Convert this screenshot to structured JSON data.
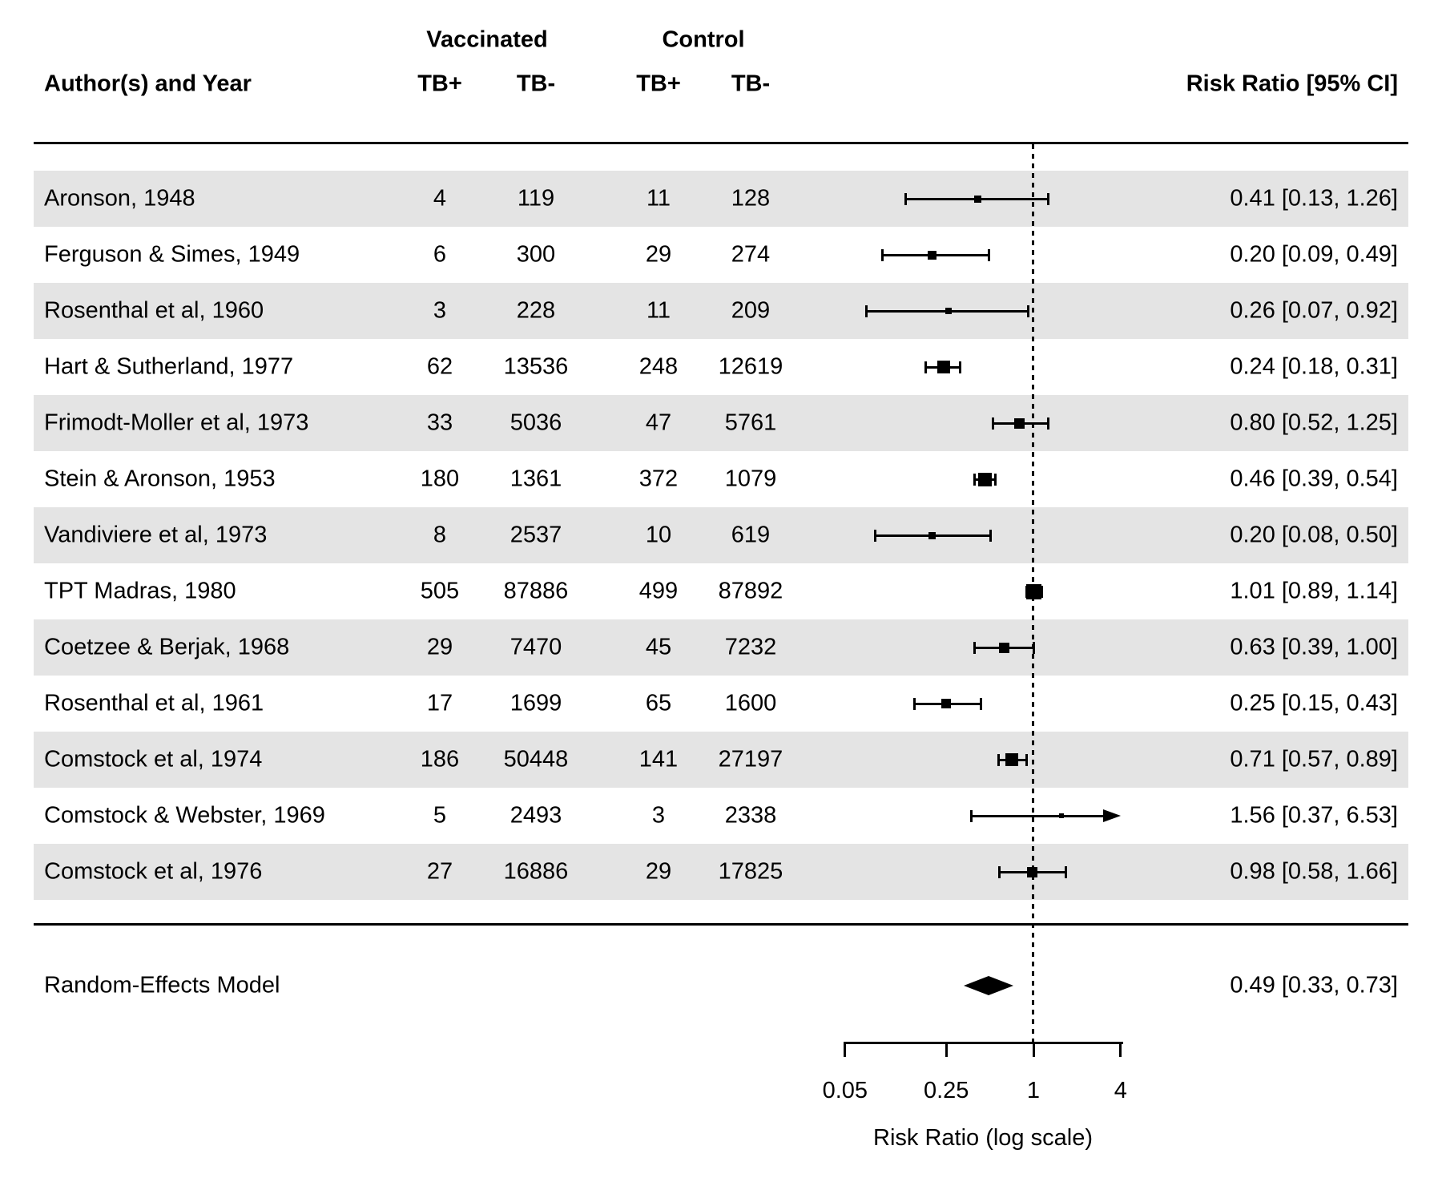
{
  "header": {
    "author": "Author(s) and Year",
    "group_vaccinated": "Vaccinated",
    "group_control": "Control",
    "tb_pos": "TB+",
    "tb_neg": "TB-",
    "effect": "Risk Ratio [95% CI]"
  },
  "summary": {
    "label": "Random-Effects Model",
    "rr": 0.49,
    "ci_low": 0.33,
    "ci_high": 0.73,
    "text": "0.49 [0.33, 0.73]"
  },
  "axis": {
    "scale": "log",
    "min": 0.05,
    "max": 4,
    "reference": 1,
    "ticks": [
      0.05,
      0.25,
      1,
      4
    ],
    "tick_labels": [
      "0.05",
      "0.25",
      "1",
      "4"
    ],
    "label": "Risk Ratio (log scale)"
  },
  "colors": {
    "stripe": "#e4e4e4",
    "marker": "#000000",
    "text": "#000000",
    "background": "#ffffff"
  },
  "chart_data": {
    "type": "forest",
    "title": "",
    "xlabel": "Risk Ratio (log scale)",
    "xlim": [
      0.05,
      4
    ],
    "reference_line": 1,
    "grid": false,
    "studies": [
      {
        "author": "Aronson, 1948",
        "vacc_tb_pos": 4,
        "vacc_tb_neg": 119,
        "ctrl_tb_pos": 11,
        "ctrl_tb_neg": 128,
        "rr": 0.41,
        "ci_low": 0.13,
        "ci_high": 1.26,
        "text": "0.41 [0.13, 1.26]",
        "marker_size": 9
      },
      {
        "author": "Ferguson & Simes, 1949",
        "vacc_tb_pos": 6,
        "vacc_tb_neg": 300,
        "ctrl_tb_pos": 29,
        "ctrl_tb_neg": 274,
        "rr": 0.2,
        "ci_low": 0.09,
        "ci_high": 0.49,
        "text": "0.20 [0.09, 0.49]",
        "marker_size": 11
      },
      {
        "author": "Rosenthal et al, 1960",
        "vacc_tb_pos": 3,
        "vacc_tb_neg": 228,
        "ctrl_tb_pos": 11,
        "ctrl_tb_neg": 209,
        "rr": 0.26,
        "ci_low": 0.07,
        "ci_high": 0.92,
        "text": "0.26 [0.07, 0.92]",
        "marker_size": 8
      },
      {
        "author": "Hart & Sutherland, 1977",
        "vacc_tb_pos": 62,
        "vacc_tb_neg": 13536,
        "ctrl_tb_pos": 248,
        "ctrl_tb_neg": 12619,
        "rr": 0.24,
        "ci_low": 0.18,
        "ci_high": 0.31,
        "text": "0.24 [0.18, 0.31]",
        "marker_size": 16
      },
      {
        "author": "Frimodt-Moller et al, 1973",
        "vacc_tb_pos": 33,
        "vacc_tb_neg": 5036,
        "ctrl_tb_pos": 47,
        "ctrl_tb_neg": 5761,
        "rr": 0.8,
        "ci_low": 0.52,
        "ci_high": 1.25,
        "text": "0.80 [0.52, 1.25]",
        "marker_size": 13
      },
      {
        "author": "Stein & Aronson, 1953",
        "vacc_tb_pos": 180,
        "vacc_tb_neg": 1361,
        "ctrl_tb_pos": 372,
        "ctrl_tb_neg": 1079,
        "rr": 0.46,
        "ci_low": 0.39,
        "ci_high": 0.54,
        "text": "0.46 [0.39, 0.54]",
        "marker_size": 17
      },
      {
        "author": "Vandiviere et al, 1973",
        "vacc_tb_pos": 8,
        "vacc_tb_neg": 2537,
        "ctrl_tb_pos": 10,
        "ctrl_tb_neg": 619,
        "rr": 0.2,
        "ci_low": 0.08,
        "ci_high": 0.5,
        "text": "0.20 [0.08, 0.50]",
        "marker_size": 9
      },
      {
        "author": "TPT Madras, 1980",
        "vacc_tb_pos": 505,
        "vacc_tb_neg": 87886,
        "ctrl_tb_pos": 499,
        "ctrl_tb_neg": 87892,
        "rr": 1.01,
        "ci_low": 0.89,
        "ci_high": 1.14,
        "text": "1.01 [0.89, 1.14]",
        "marker_size": 19
      },
      {
        "author": "Coetzee & Berjak, 1968",
        "vacc_tb_pos": 29,
        "vacc_tb_neg": 7470,
        "ctrl_tb_pos": 45,
        "ctrl_tb_neg": 7232,
        "rr": 0.63,
        "ci_low": 0.39,
        "ci_high": 1.0,
        "text": "0.63 [0.39, 1.00]",
        "marker_size": 13
      },
      {
        "author": "Rosenthal et al, 1961",
        "vacc_tb_pos": 17,
        "vacc_tb_neg": 1699,
        "ctrl_tb_pos": 65,
        "ctrl_tb_neg": 1600,
        "rr": 0.25,
        "ci_low": 0.15,
        "ci_high": 0.43,
        "text": "0.25 [0.15, 0.43]",
        "marker_size": 12
      },
      {
        "author": "Comstock et al, 1974",
        "vacc_tb_pos": 186,
        "vacc_tb_neg": 50448,
        "ctrl_tb_pos": 141,
        "ctrl_tb_neg": 27197,
        "rr": 0.71,
        "ci_low": 0.57,
        "ci_high": 0.89,
        "text": "0.71 [0.57, 0.89]",
        "marker_size": 16
      },
      {
        "author": "Comstock & Webster, 1969",
        "vacc_tb_pos": 5,
        "vacc_tb_neg": 2493,
        "ctrl_tb_pos": 3,
        "ctrl_tb_neg": 2338,
        "rr": 1.56,
        "ci_low": 0.37,
        "ci_high": 6.53,
        "text": "1.56 [0.37, 6.53]",
        "marker_size": 6
      },
      {
        "author": "Comstock et al, 1976",
        "vacc_tb_pos": 27,
        "vacc_tb_neg": 16886,
        "ctrl_tb_pos": 29,
        "ctrl_tb_neg": 17825,
        "rr": 0.98,
        "ci_low": 0.58,
        "ci_high": 1.66,
        "text": "0.98 [0.58, 1.66]",
        "marker_size": 13
      }
    ]
  }
}
